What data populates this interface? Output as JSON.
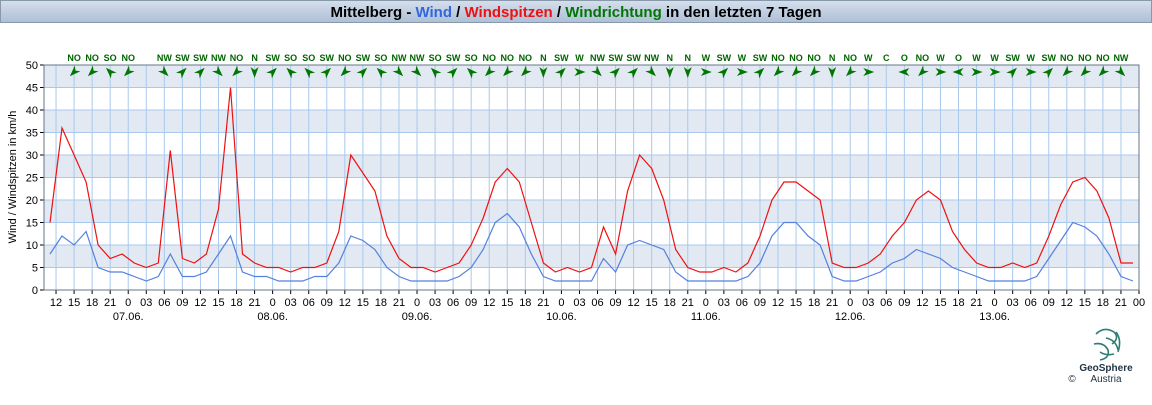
{
  "chart_data": {
    "type": "line",
    "title_parts": [
      {
        "text": "Mittelberg - ",
        "color": "#000000"
      },
      {
        "text": "Wind",
        "color": "#3366dd"
      },
      {
        "text": " / ",
        "color": "#000000"
      },
      {
        "text": "Windspitzen",
        "color": "#ee1111"
      },
      {
        "text": " / ",
        "color": "#000000"
      },
      {
        "text": "Windrichtung",
        "color": "#007700"
      },
      {
        "text": " in den letzten 7 Tagen",
        "color": "#000000"
      }
    ],
    "y_label": "Wind / Windspitzen in km/h",
    "xlim": [
      -14,
      168
    ],
    "ylim": [
      0,
      50
    ],
    "yticks": [
      0,
      5,
      10,
      15,
      20,
      25,
      30,
      35,
      40,
      45,
      50
    ],
    "xticks": [
      {
        "value": -12,
        "label": "12"
      },
      {
        "value": -9,
        "label": "15"
      },
      {
        "value": -6,
        "label": "18"
      },
      {
        "value": -3,
        "label": "21"
      },
      {
        "value": 0,
        "label": "0"
      },
      {
        "value": 3,
        "label": "03"
      },
      {
        "value": 6,
        "label": "06"
      },
      {
        "value": 9,
        "label": "09"
      },
      {
        "value": 12,
        "label": "12"
      },
      {
        "value": 15,
        "label": "15"
      },
      {
        "value": 18,
        "label": "18"
      },
      {
        "value": 21,
        "label": "21"
      },
      {
        "value": 24,
        "label": "0"
      },
      {
        "value": 27,
        "label": "03"
      },
      {
        "value": 30,
        "label": "06"
      },
      {
        "value": 33,
        "label": "09"
      },
      {
        "value": 36,
        "label": "12"
      },
      {
        "value": 39,
        "label": "15"
      },
      {
        "value": 42,
        "label": "18"
      },
      {
        "value": 45,
        "label": "21"
      },
      {
        "value": 48,
        "label": "0"
      },
      {
        "value": 51,
        "label": "03"
      },
      {
        "value": 54,
        "label": "06"
      },
      {
        "value": 57,
        "label": "09"
      },
      {
        "value": 60,
        "label": "12"
      },
      {
        "value": 63,
        "label": "15"
      },
      {
        "value": 66,
        "label": "18"
      },
      {
        "value": 69,
        "label": "21"
      },
      {
        "value": 72,
        "label": "0"
      },
      {
        "value": 75,
        "label": "03"
      },
      {
        "value": 78,
        "label": "06"
      },
      {
        "value": 81,
        "label": "09"
      },
      {
        "value": 84,
        "label": "12"
      },
      {
        "value": 87,
        "label": "15"
      },
      {
        "value": 90,
        "label": "18"
      },
      {
        "value": 93,
        "label": "21"
      },
      {
        "value": 96,
        "label": "0"
      },
      {
        "value": 99,
        "label": "03"
      },
      {
        "value": 102,
        "label": "06"
      },
      {
        "value": 105,
        "label": "09"
      },
      {
        "value": 108,
        "label": "12"
      },
      {
        "value": 111,
        "label": "15"
      },
      {
        "value": 114,
        "label": "18"
      },
      {
        "value": 117,
        "label": "21"
      },
      {
        "value": 120,
        "label": "0"
      },
      {
        "value": 123,
        "label": "03"
      },
      {
        "value": 126,
        "label": "06"
      },
      {
        "value": 129,
        "label": "09"
      },
      {
        "value": 132,
        "label": "12"
      },
      {
        "value": 135,
        "label": "15"
      },
      {
        "value": 138,
        "label": "18"
      },
      {
        "value": 141,
        "label": "21"
      },
      {
        "value": 144,
        "label": "0"
      },
      {
        "value": 147,
        "label": "03"
      },
      {
        "value": 150,
        "label": "06"
      },
      {
        "value": 153,
        "label": "09"
      },
      {
        "value": 156,
        "label": "12"
      },
      {
        "value": 159,
        "label": "15"
      },
      {
        "value": 162,
        "label": "18"
      },
      {
        "value": 165,
        "label": "21"
      },
      {
        "value": 168,
        "label": "00"
      }
    ],
    "days": [
      {
        "x": 0,
        "label": "07.06."
      },
      {
        "x": 24,
        "label": "08.06."
      },
      {
        "x": 48,
        "label": "09.06."
      },
      {
        "x": 72,
        "label": "10.06."
      },
      {
        "x": 96,
        "label": "11.06."
      },
      {
        "x": 120,
        "label": "12.06."
      },
      {
        "x": 144,
        "label": "13.06."
      }
    ],
    "directions": {
      "color": "#007700",
      "x": [
        -9,
        -6,
        -3,
        0,
        6,
        9,
        12,
        15,
        18,
        21,
        24,
        27,
        30,
        33,
        36,
        39,
        42,
        45,
        48,
        51,
        54,
        57,
        60,
        63,
        66,
        69,
        72,
        75,
        78,
        81,
        84,
        87,
        90,
        93,
        96,
        99,
        102,
        105,
        108,
        111,
        114,
        117,
        120,
        123,
        126,
        129,
        132,
        135,
        138,
        141,
        144,
        147,
        150,
        153,
        156,
        159,
        162,
        165
      ],
      "labels": [
        "NO",
        "NO",
        "SO",
        "NO",
        "NW",
        "SW",
        "SW",
        "NW",
        "NO",
        "N",
        "SW",
        "SO",
        "SO",
        "SW",
        "NO",
        "SW",
        "SO",
        "NW",
        "NW",
        "SO",
        "SW",
        "SO",
        "NO",
        "NO",
        "NO",
        "N",
        "SW",
        "W",
        "NW",
        "SW",
        "SW",
        "NW",
        "N",
        "N",
        "W",
        "SW",
        "W",
        "SW",
        "NO",
        "NO",
        "NO",
        "N",
        "NO",
        "W",
        "C",
        "O",
        "NO",
        "W",
        "O",
        "W",
        "W",
        "SW",
        "W",
        "SW",
        "NO",
        "NO",
        "NO",
        "NW"
      ]
    },
    "x": [
      -13,
      -11,
      -9,
      -7,
      -5,
      -3,
      -1,
      1,
      3,
      5,
      7,
      9,
      11,
      13,
      15,
      17,
      19,
      21,
      23,
      25,
      27,
      29,
      31,
      33,
      35,
      37,
      39,
      41,
      43,
      45,
      47,
      49,
      51,
      53,
      55,
      57,
      59,
      61,
      63,
      65,
      67,
      69,
      71,
      73,
      75,
      77,
      79,
      81,
      83,
      85,
      87,
      89,
      91,
      93,
      95,
      97,
      99,
      101,
      103,
      105,
      107,
      109,
      111,
      113,
      115,
      117,
      119,
      121,
      123,
      125,
      127,
      129,
      131,
      133,
      135,
      137,
      139,
      141,
      143,
      145,
      147,
      149,
      151,
      153,
      155,
      157,
      159,
      161,
      163,
      165,
      167
    ],
    "series": [
      {
        "name": "Wind",
        "color": "#5580dd",
        "values": [
          8,
          12,
          10,
          13,
          5,
          4,
          4,
          3,
          2,
          3,
          8,
          3,
          3,
          4,
          8,
          12,
          4,
          3,
          3,
          2,
          2,
          2,
          3,
          3,
          6,
          12,
          11,
          9,
          5,
          3,
          2,
          2,
          2,
          2,
          3,
          5,
          9,
          15,
          17,
          14,
          8,
          3,
          2,
          2,
          2,
          2,
          7,
          4,
          10,
          11,
          10,
          9,
          4,
          2,
          2,
          2,
          2,
          2,
          3,
          6,
          12,
          15,
          15,
          12,
          10,
          3,
          2,
          2,
          3,
          4,
          6,
          7,
          9,
          8,
          7,
          5,
          4,
          3,
          2,
          2,
          2,
          2,
          3,
          7,
          11,
          15,
          14,
          12,
          8,
          3,
          2
        ]
      },
      {
        "name": "Windspitzen",
        "color": "#ee1111",
        "values": [
          15,
          36,
          30,
          24,
          10,
          7,
          8,
          6,
          5,
          6,
          31,
          7,
          6,
          8,
          18,
          45,
          8,
          6,
          5,
          5,
          4,
          5,
          5,
          6,
          13,
          30,
          26,
          22,
          12,
          7,
          5,
          5,
          4,
          5,
          6,
          10,
          16,
          24,
          27,
          24,
          15,
          6,
          4,
          5,
          4,
          5,
          14,
          8,
          22,
          30,
          27,
          20,
          9,
          5,
          4,
          4,
          5,
          4,
          6,
          12,
          20,
          24,
          24,
          22,
          20,
          6,
          5,
          5,
          6,
          8,
          12,
          15,
          20,
          22,
          20,
          13,
          9,
          6,
          5,
          5,
          6,
          5,
          6,
          12,
          19,
          24,
          25,
          22,
          16,
          6,
          6
        ]
      }
    ],
    "logo": {
      "line1": "GeoSphere",
      "line2": "Austria",
      "copyright": "©"
    }
  }
}
